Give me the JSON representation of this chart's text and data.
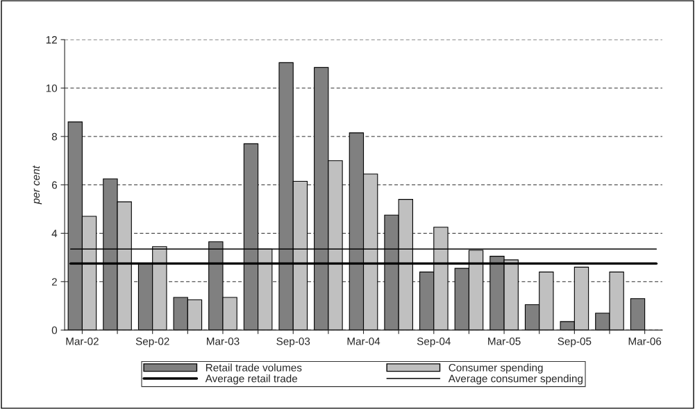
{
  "chart_data": {
    "type": "bar",
    "ylabel": "per cent",
    "categories": [
      "Mar-02",
      null,
      "Sep-02",
      null,
      "Mar-03",
      null,
      "Sep-03",
      null,
      "Mar-04",
      null,
      "Sep-04",
      null,
      "Mar-05",
      null,
      "Sep-05",
      null,
      "Mar-06"
    ],
    "series": [
      {
        "name": "Retail trade volumes",
        "color": "#808080",
        "values": [
          8.6,
          6.25,
          2.75,
          1.35,
          3.65,
          7.7,
          11.05,
          10.85,
          8.15,
          4.75,
          2.4,
          2.55,
          3.05,
          1.05,
          0.35,
          0.7,
          1.3
        ]
      },
      {
        "name": "Consumer spending",
        "color": "#c0c0c0",
        "values": [
          4.7,
          5.3,
          3.45,
          1.25,
          1.35,
          3.35,
          6.15,
          7.0,
          6.45,
          5.4,
          4.25,
          3.3,
          2.9,
          2.4,
          2.6,
          2.4,
          null
        ]
      }
    ],
    "ref_lines": [
      {
        "axis": "y",
        "value": 2.75,
        "label": "Average retail trade",
        "color": "#000000",
        "line_style": "solid"
      },
      {
        "axis": "y",
        "value": 3.35,
        "label": "Average consumer spending",
        "color": "#000000",
        "line_style": "solid"
      }
    ],
    "ylim": [
      0,
      12
    ],
    "yticks": [
      0,
      2,
      4,
      6,
      8,
      10,
      12
    ],
    "grid": "y",
    "legend": "bottom"
  }
}
